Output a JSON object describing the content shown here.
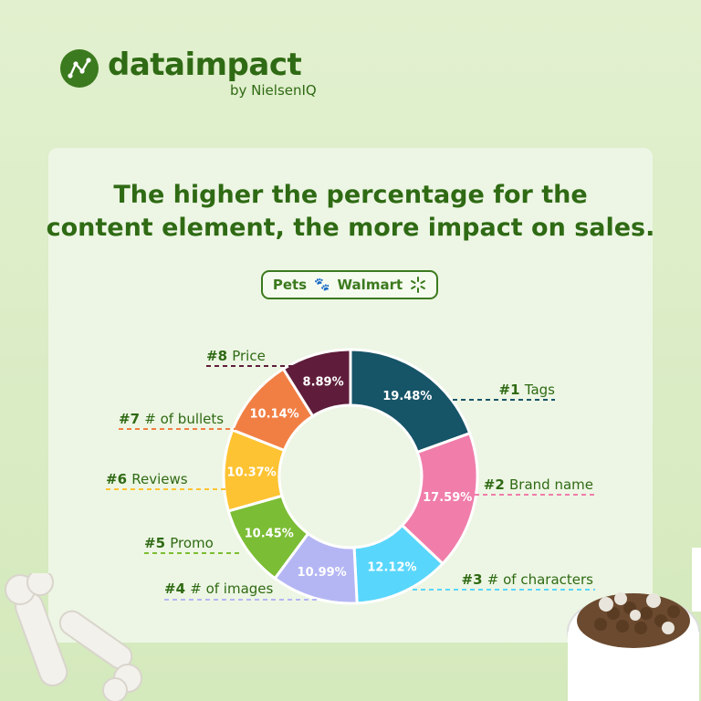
{
  "brand": {
    "name": "dataimpact",
    "subtitle": "by NielsenIQ",
    "color": "#2f6a14"
  },
  "headline": {
    "line1": "The higher the percentage for the",
    "line2": "content element, the more impact on sales."
  },
  "filter": {
    "category": "Pets",
    "category_icon": "paw-icon",
    "retailer": "Walmart",
    "retailer_icon": "walmart-spark-icon"
  },
  "chart_data": {
    "type": "pie",
    "variant": "donut",
    "direction": "clockwise-from-top",
    "slices": [
      {
        "rank": "#1",
        "label": "Tags",
        "value": 19.48,
        "display": "19.48%",
        "color": "#165468"
      },
      {
        "rank": "#2",
        "label": "Brand name",
        "value": 17.59,
        "display": "17.59%",
        "color": "#f07daa"
      },
      {
        "rank": "#3",
        "label": "# of characters",
        "value": 12.12,
        "display": "12.12%",
        "color": "#59d6fb"
      },
      {
        "rank": "#4",
        "label": "# of images",
        "value": 10.99,
        "display": "10.99%",
        "color": "#b4b6f4"
      },
      {
        "rank": "#5",
        "label": "Promo",
        "value": 10.45,
        "display": "10.45%",
        "color": "#7bbd34"
      },
      {
        "rank": "#6",
        "label": "Reviews",
        "value": 10.37,
        "display": "10.37%",
        "color": "#fec332"
      },
      {
        "rank": "#7",
        "label": "# of bullets",
        "value": 10.14,
        "display": "10.14%",
        "color": "#f17f44"
      },
      {
        "rank": "#8",
        "label": "Price",
        "value": 8.89,
        "display": "8.89%",
        "color": "#5f1d3b"
      }
    ]
  }
}
